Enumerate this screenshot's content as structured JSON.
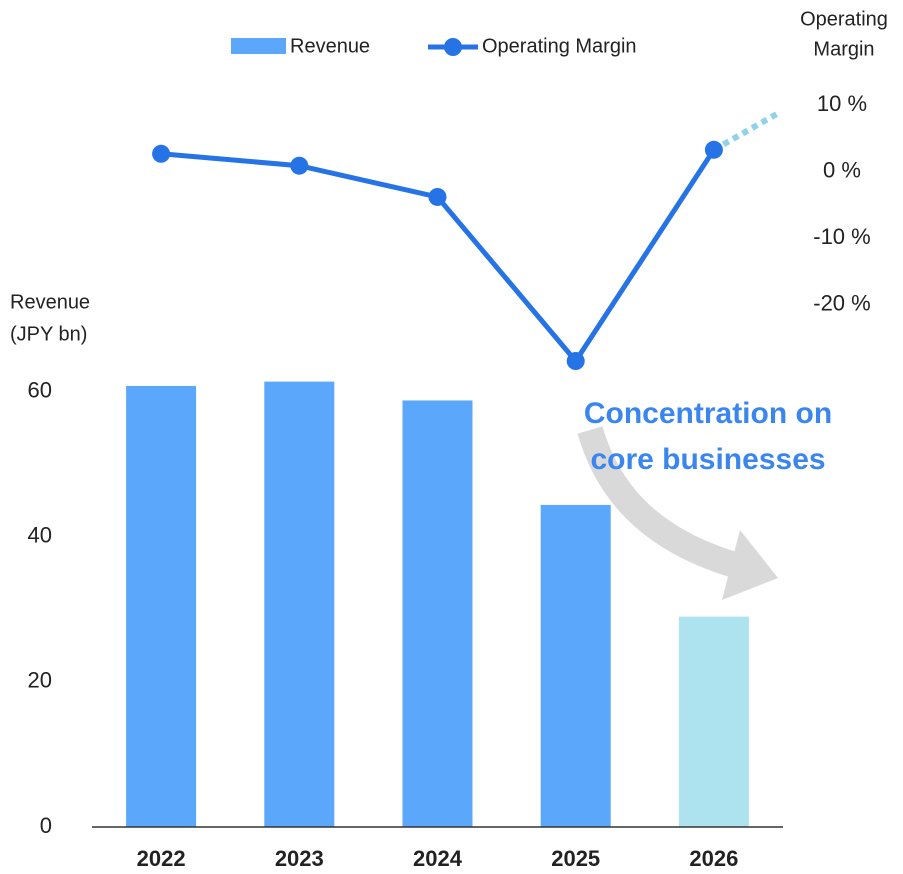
{
  "chart_data": {
    "type": "bar-line",
    "categories": [
      "2022",
      "2023",
      "2024",
      "2025",
      "2026"
    ],
    "series": [
      {
        "name": "Revenue",
        "type": "bar",
        "color": "#5aa7fb",
        "colors": [
          "#5aa7fb",
          "#5aa7fb",
          "#5aa7fb",
          "#5aa7fb",
          "#ade3ee"
        ],
        "values": [
          60.8,
          61.4,
          58.8,
          44.4,
          29.0
        ]
      },
      {
        "name": "Operating Margin",
        "type": "line",
        "axis": "y2",
        "color": "#2673e6",
        "values": [
          2.7,
          0.9,
          -3.8,
          -28.5,
          3.3
        ]
      }
    ],
    "y_label": [
      "Revenue",
      "(JPY bn)"
    ],
    "y2_label": [
      "Operating",
      "Margin"
    ],
    "ylim": [
      0,
      63
    ],
    "yticks": [
      0,
      20,
      40,
      60
    ],
    "y2lim": [
      -30,
      12
    ],
    "y2ticks": [
      {
        "value": 10,
        "label": "10 %"
      },
      {
        "value": 0,
        "label": "0 %"
      },
      {
        "value": -10,
        "label": "-10 %"
      },
      {
        "value": -20,
        "label": "-20 %"
      }
    ],
    "annotation": [
      "Concentration on",
      "core businesses"
    ]
  }
}
